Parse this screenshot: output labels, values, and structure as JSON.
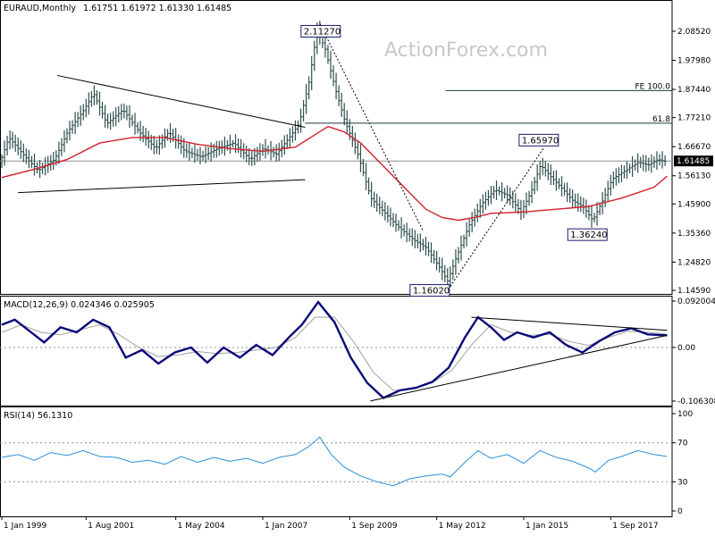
{
  "header": {
    "symbol": "EURAUD,Monthly",
    "ohlc": "1.61751 1.61972 1.61330 1.61485"
  },
  "watermark": "ActionForex.com",
  "colors": {
    "bars": "#2f4f4f",
    "sma": "#d2202a",
    "macd": "#0a0a7a",
    "signal": "#a0a0a0",
    "rsi": "#2b8fd6",
    "trend": "#000000",
    "level": "#1f3a3a"
  },
  "chart_data": [
    {
      "type": "ohlc",
      "title": "EURAUD,Monthly",
      "ylim": [
        1.1459,
        2.1272
      ],
      "y_ticks": [
        "2.08520",
        "1.97980",
        "1.87440",
        "1.77210",
        "1.66670",
        "1.56130",
        "1.45900",
        "1.35360",
        "1.24820",
        "1.14590"
      ],
      "current_price": "1.61485",
      "x_ticks": [
        "1 Jan 1999",
        "1 Aug 2001",
        "1 May 2004",
        "1 Jan 2007",
        "1 Sep 2009",
        "1 May 2012",
        "1 Jan 2015",
        "1 Sep 2017"
      ],
      "price_path": [
        [
          1999.0,
          1.6
        ],
        [
          1999.3,
          1.7
        ],
        [
          1999.8,
          1.63
        ],
        [
          2000.2,
          1.58
        ],
        [
          2000.7,
          1.62
        ],
        [
          2001.1,
          1.72
        ],
        [
          2001.6,
          1.8
        ],
        [
          2001.9,
          1.86
        ],
        [
          2002.3,
          1.75
        ],
        [
          2002.8,
          1.8
        ],
        [
          2003.3,
          1.72
        ],
        [
          2003.8,
          1.66
        ],
        [
          2004.2,
          1.72
        ],
        [
          2004.7,
          1.65
        ],
        [
          2005.2,
          1.63
        ],
        [
          2005.7,
          1.66
        ],
        [
          2006.2,
          1.68
        ],
        [
          2006.7,
          1.62
        ],
        [
          2007.1,
          1.66
        ],
        [
          2007.5,
          1.64
        ],
        [
          2007.9,
          1.7
        ],
        [
          2008.2,
          1.75
        ],
        [
          2008.5,
          1.9
        ],
        [
          2008.75,
          2.09
        ],
        [
          2009.0,
          2.02
        ],
        [
          2009.3,
          1.88
        ],
        [
          2009.6,
          1.76
        ],
        [
          2010.0,
          1.64
        ],
        [
          2010.4,
          1.48
        ],
        [
          2010.8,
          1.43
        ],
        [
          2011.2,
          1.38
        ],
        [
          2011.7,
          1.33
        ],
        [
          2012.1,
          1.3
        ],
        [
          2012.5,
          1.23
        ],
        [
          2012.75,
          1.18
        ],
        [
          2013.0,
          1.26
        ],
        [
          2013.4,
          1.38
        ],
        [
          2013.8,
          1.46
        ],
        [
          2014.2,
          1.51
        ],
        [
          2014.6,
          1.49
        ],
        [
          2015.0,
          1.43
        ],
        [
          2015.3,
          1.5
        ],
        [
          2015.6,
          1.6
        ],
        [
          2015.9,
          1.56
        ],
        [
          2016.3,
          1.51
        ],
        [
          2016.6,
          1.47
        ],
        [
          2016.9,
          1.45
        ],
        [
          2017.2,
          1.4
        ],
        [
          2017.5,
          1.47
        ],
        [
          2017.8,
          1.55
        ],
        [
          2018.2,
          1.58
        ],
        [
          2018.6,
          1.61
        ],
        [
          2018.9,
          1.6
        ],
        [
          2019.2,
          1.62
        ],
        [
          2019.4,
          1.614
        ]
      ],
      "sma_path": [
        [
          1999.0,
          1.555
        ],
        [
          2000.0,
          1.585
        ],
        [
          2001.0,
          1.62
        ],
        [
          2002.0,
          1.68
        ],
        [
          2003.0,
          1.7
        ],
        [
          2004.0,
          1.7
        ],
        [
          2005.0,
          1.675
        ],
        [
          2006.0,
          1.66
        ],
        [
          2007.0,
          1.65
        ],
        [
          2008.0,
          1.665
        ],
        [
          2008.6,
          1.71
        ],
        [
          2009.0,
          1.74
        ],
        [
          2009.5,
          1.72
        ],
        [
          2010.0,
          1.68
        ],
        [
          2010.5,
          1.62
        ],
        [
          2011.0,
          1.56
        ],
        [
          2011.5,
          1.5
        ],
        [
          2012.0,
          1.44
        ],
        [
          2012.5,
          1.41
        ],
        [
          2013.0,
          1.4
        ],
        [
          2013.5,
          1.41
        ],
        [
          2014.0,
          1.425
        ],
        [
          2015.0,
          1.43
        ],
        [
          2016.0,
          1.44
        ],
        [
          2017.0,
          1.45
        ],
        [
          2018.0,
          1.48
        ],
        [
          2019.0,
          1.52
        ],
        [
          2019.4,
          1.56
        ]
      ],
      "annotations": [
        {
          "text": "2.11270",
          "x": 2008.75,
          "y": 2.1127
        },
        {
          "text": "1.65970",
          "x": 2015.6,
          "y": 1.6597
        },
        {
          "text": "1.36240",
          "x": 2017.2,
          "y": 1.3624
        },
        {
          "text": "1.16020",
          "x": 2012.75,
          "y": 1.1602
        }
      ],
      "fib_levels": [
        {
          "label": "FE 100.0",
          "value": 1.87
        },
        {
          "label": "61.8",
          "value": 1.752
        }
      ],
      "trendlines": [
        {
          "style": "solid",
          "points": [
            [
              2000.7,
              1.925
            ],
            [
              2008.3,
              1.737
            ]
          ]
        },
        {
          "style": "solid",
          "points": [
            [
              1999.5,
              1.5
            ],
            [
              2008.3,
              1.547
            ]
          ]
        },
        {
          "style": "dotted",
          "points": [
            [
              2008.75,
              2.1127
            ],
            [
              2011.9,
              1.365
            ]
          ]
        },
        {
          "style": "dotted",
          "points": [
            [
              2012.75,
              1.16
            ],
            [
              2015.6,
              1.6597
            ]
          ]
        }
      ]
    },
    {
      "type": "line",
      "title": "MACD(12,26,9) 0.024346 0.025905",
      "ylim": [
        -0.106308,
        0.092004
      ],
      "y_ticks": [
        "0.092004",
        "0.00",
        "-0.106308"
      ],
      "series": [
        {
          "name": "MACD",
          "points": [
            [
              1999.0,
              0.045
            ],
            [
              1999.4,
              0.055
            ],
            [
              1999.8,
              0.035
            ],
            [
              2000.3,
              0.01
            ],
            [
              2000.8,
              0.04
            ],
            [
              2001.3,
              0.03
            ],
            [
              2001.8,
              0.055
            ],
            [
              2002.3,
              0.04
            ],
            [
              2002.8,
              -0.02
            ],
            [
              2003.3,
              -0.005
            ],
            [
              2003.8,
              -0.032
            ],
            [
              2004.3,
              -0.01
            ],
            [
              2004.8,
              0.0
            ],
            [
              2005.3,
              -0.03
            ],
            [
              2005.8,
              0.0
            ],
            [
              2006.3,
              -0.02
            ],
            [
              2006.8,
              0.005
            ],
            [
              2007.3,
              -0.015
            ],
            [
              2007.8,
              0.02
            ],
            [
              2008.2,
              0.045
            ],
            [
              2008.7,
              0.09
            ],
            [
              2009.2,
              0.05
            ],
            [
              2009.7,
              -0.02
            ],
            [
              2010.2,
              -0.07
            ],
            [
              2010.7,
              -0.1
            ],
            [
              2011.2,
              -0.085
            ],
            [
              2011.7,
              -0.08
            ],
            [
              2012.2,
              -0.068
            ],
            [
              2012.7,
              -0.04
            ],
            [
              2013.2,
              0.02
            ],
            [
              2013.6,
              0.06
            ],
            [
              2014.0,
              0.04
            ],
            [
              2014.4,
              0.015
            ],
            [
              2014.8,
              0.03
            ],
            [
              2015.3,
              0.02
            ],
            [
              2015.8,
              0.03
            ],
            [
              2016.3,
              0.005
            ],
            [
              2016.8,
              -0.01
            ],
            [
              2017.3,
              0.012
            ],
            [
              2017.8,
              0.03
            ],
            [
              2018.3,
              0.038
            ],
            [
              2018.8,
              0.026
            ],
            [
              2019.4,
              0.024
            ]
          ]
        },
        {
          "name": "Signal",
          "points": [
            [
              1999.0,
              0.03
            ],
            [
              1999.6,
              0.045
            ],
            [
              2000.2,
              0.03
            ],
            [
              2000.8,
              0.025
            ],
            [
              2001.4,
              0.035
            ],
            [
              2002.0,
              0.045
            ],
            [
              2002.6,
              0.025
            ],
            [
              2003.2,
              0.0
            ],
            [
              2003.8,
              -0.018
            ],
            [
              2004.4,
              -0.015
            ],
            [
              2005.0,
              -0.008
            ],
            [
              2005.6,
              -0.012
            ],
            [
              2006.2,
              -0.01
            ],
            [
              2006.8,
              -0.005
            ],
            [
              2007.4,
              0.0
            ],
            [
              2008.0,
              0.02
            ],
            [
              2008.6,
              0.06
            ],
            [
              2009.2,
              0.06
            ],
            [
              2009.8,
              0.01
            ],
            [
              2010.4,
              -0.05
            ],
            [
              2011.0,
              -0.085
            ],
            [
              2011.6,
              -0.082
            ],
            [
              2012.2,
              -0.07
            ],
            [
              2012.8,
              -0.045
            ],
            [
              2013.4,
              0.005
            ],
            [
              2014.0,
              0.045
            ],
            [
              2014.6,
              0.03
            ],
            [
              2015.2,
              0.024
            ],
            [
              2015.8,
              0.026
            ],
            [
              2016.4,
              0.012
            ],
            [
              2017.0,
              0.004
            ],
            [
              2017.6,
              0.02
            ],
            [
              2018.2,
              0.032
            ],
            [
              2018.8,
              0.03
            ],
            [
              2019.4,
              0.026
            ]
          ]
        }
      ],
      "trendlines": [
        {
          "points": [
            [
              2010.3,
              -0.106
            ],
            [
              2019.4,
              0.024
            ]
          ]
        },
        {
          "points": [
            [
              2013.4,
              0.06
            ],
            [
              2019.4,
              0.034
            ]
          ]
        }
      ]
    },
    {
      "type": "line",
      "title": "RSI(14) 56.1310",
      "ylim": [
        0,
        100
      ],
      "y_ticks": [
        "100",
        "70",
        "30",
        "0"
      ],
      "grid": true,
      "series": [
        {
          "name": "RSI(14)",
          "points": [
            [
              1999.0,
              55
            ],
            [
              1999.5,
              58
            ],
            [
              2000.0,
              52
            ],
            [
              2000.5,
              60
            ],
            [
              2001.0,
              57
            ],
            [
              2001.5,
              62
            ],
            [
              2002.0,
              56
            ],
            [
              2002.5,
              55
            ],
            [
              2003.0,
              50
            ],
            [
              2003.5,
              52
            ],
            [
              2004.0,
              48
            ],
            [
              2004.5,
              56
            ],
            [
              2005.0,
              50
            ],
            [
              2005.5,
              55
            ],
            [
              2006.0,
              51
            ],
            [
              2006.5,
              54
            ],
            [
              2007.0,
              49
            ],
            [
              2007.5,
              55
            ],
            [
              2008.0,
              58
            ],
            [
              2008.4,
              66
            ],
            [
              2008.75,
              76
            ],
            [
              2009.1,
              58
            ],
            [
              2009.5,
              45
            ],
            [
              2010.0,
              36
            ],
            [
              2010.5,
              30
            ],
            [
              2011.0,
              26
            ],
            [
              2011.5,
              33
            ],
            [
              2012.0,
              36
            ],
            [
              2012.5,
              38
            ],
            [
              2012.75,
              35
            ],
            [
              2013.2,
              50
            ],
            [
              2013.6,
              62
            ],
            [
              2014.0,
              54
            ],
            [
              2014.5,
              58
            ],
            [
              2015.0,
              49
            ],
            [
              2015.5,
              62
            ],
            [
              2016.0,
              55
            ],
            [
              2016.5,
              51
            ],
            [
              2017.0,
              44
            ],
            [
              2017.2,
              40
            ],
            [
              2017.6,
              52
            ],
            [
              2018.0,
              56
            ],
            [
              2018.5,
              62
            ],
            [
              2019.0,
              58
            ],
            [
              2019.4,
              56
            ]
          ]
        }
      ]
    }
  ]
}
